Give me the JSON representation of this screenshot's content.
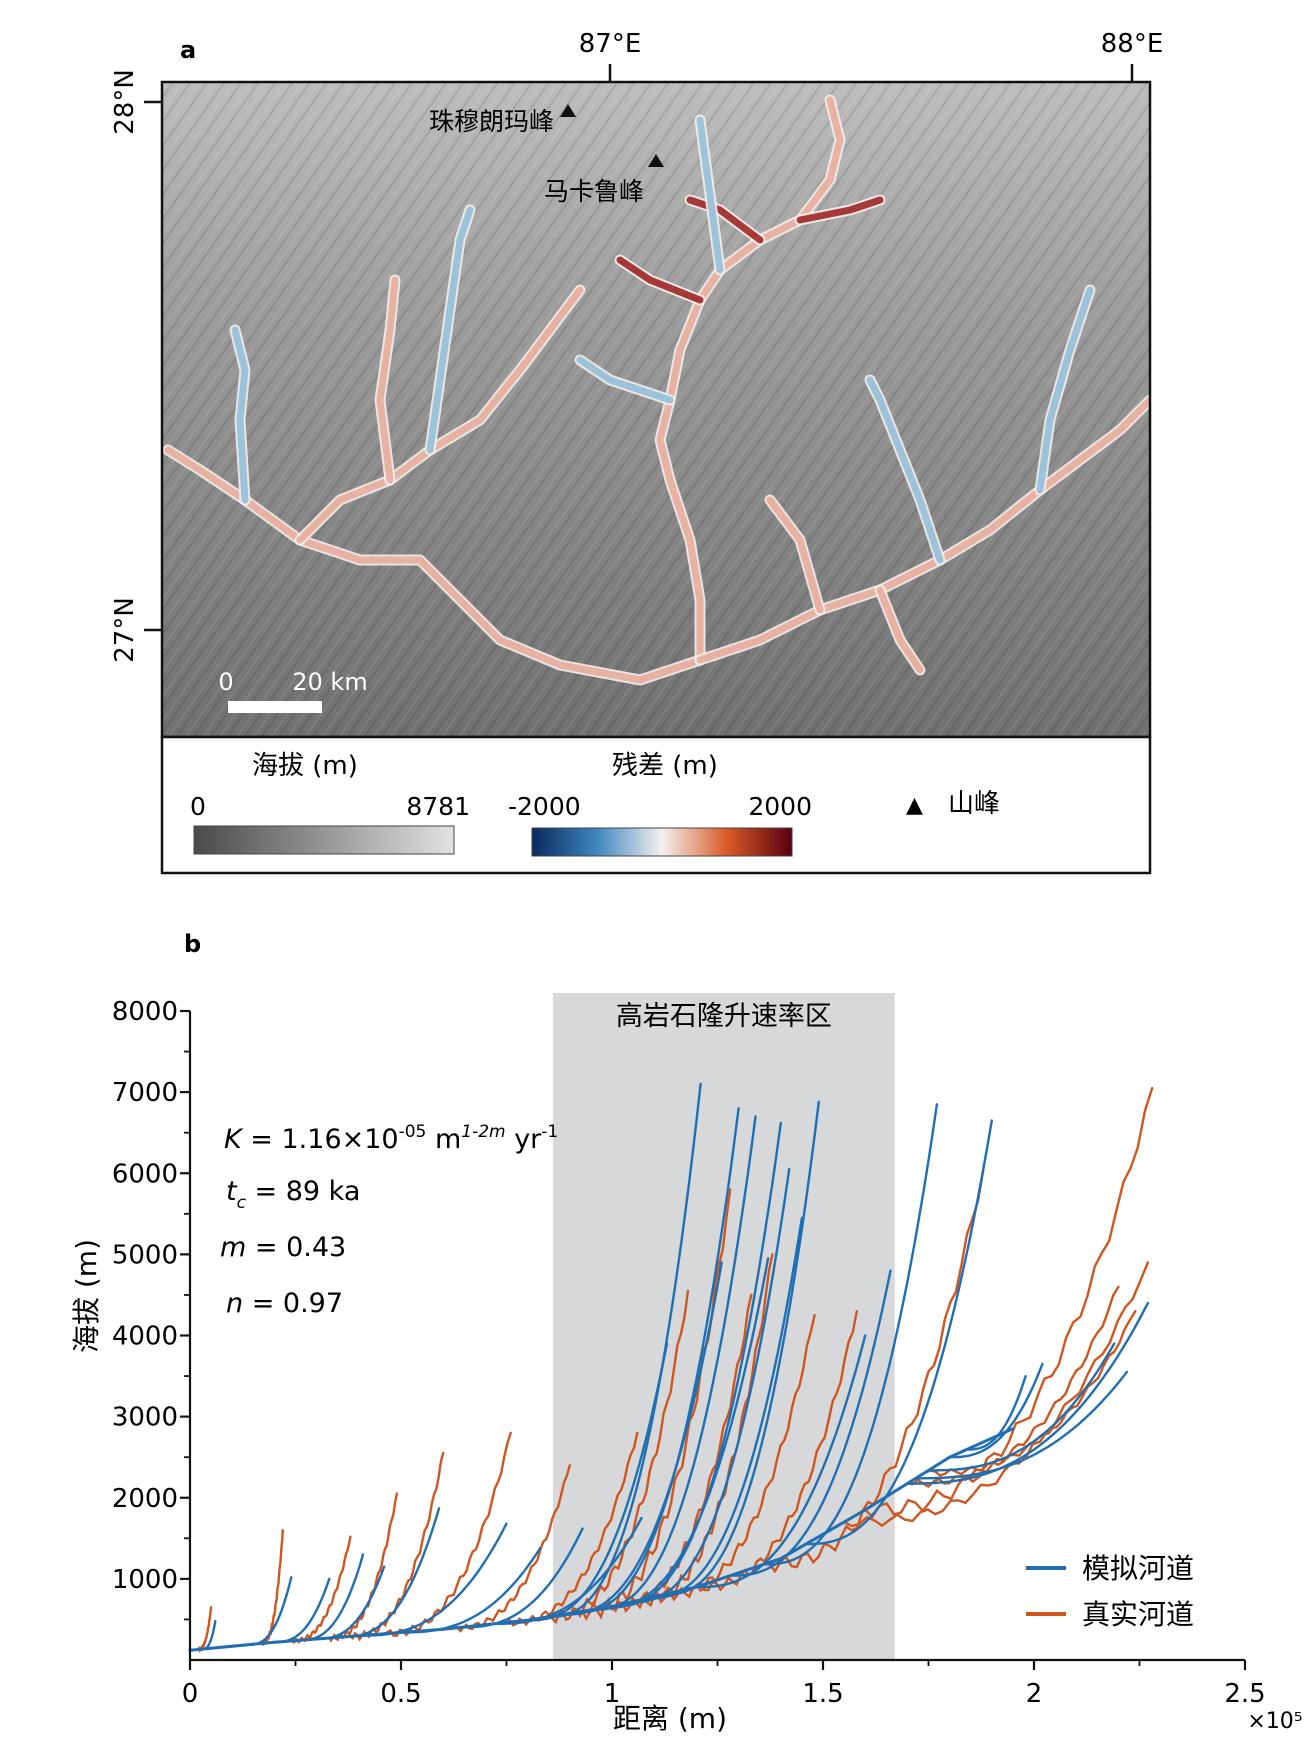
{
  "panel_a": {
    "label": "a",
    "lon_ticks": [
      "87°E",
      "88°E"
    ],
    "lat_ticks": [
      "28°N",
      "27°N"
    ],
    "peaks": [
      {
        "name": "珠穆朗玛峰"
      },
      {
        "name": "马卡鲁峰"
      }
    ],
    "scale_bar": {
      "start": "0",
      "end": "20 km"
    },
    "legend": {
      "elevation_title": "海拔 (m)",
      "elevation_min": "0",
      "elevation_max": "8781",
      "residual_title": "残差 (m)",
      "residual_min": "-2000",
      "residual_max": "2000",
      "peak_symbol": "▲",
      "peak_label": "山峰"
    },
    "colors": {
      "residual_low": "#0a2a5e",
      "residual_mid": "#f4f1ef",
      "residual_high": "#5a0010",
      "river_positive": "#e8a896",
      "river_negative": "#8fbcd8",
      "river_strong": "#9a1a1a"
    }
  },
  "chart_data": {
    "type": "line",
    "panel_label": "b",
    "xlabel": "距离 (m)",
    "ylabel": "海拔 (m)",
    "x_multiplier": "×10⁵",
    "xlim": [
      0,
      2.5
    ],
    "ylim": [
      0,
      8000
    ],
    "x_ticks": [
      "0",
      "0.5",
      "1",
      "1.5",
      "2",
      "2.5"
    ],
    "y_ticks": [
      "1000",
      "2000",
      "3000",
      "4000",
      "5000",
      "6000",
      "7000",
      "8000"
    ],
    "shaded_region": {
      "label": "高岩石隆升速率区",
      "x_start": 0.86,
      "x_end": 1.67
    },
    "params": [
      {
        "sym": "K",
        "rest": " = 1.16×10",
        "sup": "-05",
        "rest2": " m",
        "sup2": "1-2m",
        "rest3": " yr",
        "sup3": "-1"
      },
      {
        "sym": "t",
        "sub": "c",
        "rest": " = 89 ka"
      },
      {
        "sym": "m",
        "rest": " = 0.43"
      },
      {
        "sym": "n",
        "rest": " = 0.97"
      }
    ],
    "trunk": [
      [
        0.0,
        120
      ],
      [
        0.2,
        220
      ],
      [
        0.4,
        300
      ],
      [
        0.6,
        380
      ],
      [
        0.8,
        490
      ],
      [
        1.0,
        660
      ],
      [
        1.2,
        900
      ],
      [
        1.4,
        1250
      ],
      [
        1.6,
        1850
      ],
      [
        1.8,
        2500
      ],
      [
        1.95,
        2850
      ]
    ],
    "series": [
      {
        "name": "模拟河道",
        "color": "#1f6fb2"
      },
      {
        "name": "真实河道",
        "color": "#d0561f"
      }
    ],
    "simulated_tributaries": [
      {
        "x0": 0.03,
        "x1": 0.06,
        "ytop": 480
      },
      {
        "x0": 0.14,
        "x1": 0.24,
        "ytop": 1020
      },
      {
        "x0": 0.2,
        "x1": 0.33,
        "ytop": 1000
      },
      {
        "x0": 0.26,
        "x1": 0.41,
        "ytop": 1300
      },
      {
        "x0": 0.3,
        "x1": 0.46,
        "ytop": 1150
      },
      {
        "x0": 0.36,
        "x1": 0.59,
        "ytop": 1870
      },
      {
        "x0": 0.4,
        "x1": 0.75,
        "ytop": 1680
      },
      {
        "x0": 0.5,
        "x1": 0.83,
        "ytop": 1380
      },
      {
        "x0": 0.64,
        "x1": 0.93,
        "ytop": 1620
      },
      {
        "x0": 0.72,
        "x1": 1.07,
        "ytop": 1750
      },
      {
        "x0": 0.8,
        "x1": 1.13,
        "ytop": 3900
      },
      {
        "x0": 0.85,
        "x1": 1.21,
        "ytop": 7100
      },
      {
        "x0": 0.88,
        "x1": 1.26,
        "ytop": 4900
      },
      {
        "x0": 0.91,
        "x1": 1.3,
        "ytop": 6800
      },
      {
        "x0": 0.95,
        "x1": 1.34,
        "ytop": 6700
      },
      {
        "x0": 0.97,
        "x1": 1.37,
        "ytop": 4950
      },
      {
        "x0": 1.0,
        "x1": 1.4,
        "ytop": 6620
      },
      {
        "x0": 1.04,
        "x1": 1.42,
        "ytop": 6050
      },
      {
        "x0": 1.08,
        "x1": 1.45,
        "ytop": 5450
      },
      {
        "x0": 1.12,
        "x1": 1.49,
        "ytop": 6880
      },
      {
        "x0": 1.2,
        "x1": 1.6,
        "ytop": 4000
      },
      {
        "x0": 1.28,
        "x1": 1.66,
        "ytop": 4800
      },
      {
        "x0": 1.36,
        "x1": 1.77,
        "ytop": 6850
      },
      {
        "x0": 1.46,
        "x1": 1.9,
        "ytop": 6650
      },
      {
        "x0": 1.7,
        "x1": 2.27,
        "ytop": 4400
      },
      {
        "x0": 1.72,
        "x1": 2.22,
        "ytop": 3550
      },
      {
        "x0": 1.75,
        "x1": 2.19,
        "ytop": 3900
      },
      {
        "x0": 1.8,
        "x1": 2.02,
        "ytop": 3650
      },
      {
        "x0": 1.84,
        "x1": 1.98,
        "ytop": 3500
      }
    ],
    "real_tributaries": [
      {
        "x0": 0.02,
        "x1": 0.05,
        "ytop": 650
      },
      {
        "x0": 0.17,
        "x1": 0.22,
        "ytop": 1600
      },
      {
        "x0": 0.24,
        "x1": 0.38,
        "ytop": 1520
      },
      {
        "x0": 0.33,
        "x1": 0.49,
        "ytop": 2050
      },
      {
        "x0": 0.38,
        "x1": 0.6,
        "ytop": 2550
      },
      {
        "x0": 0.46,
        "x1": 0.76,
        "ytop": 2800
      },
      {
        "x0": 0.62,
        "x1": 0.9,
        "ytop": 2400
      },
      {
        "x0": 0.75,
        "x1": 1.06,
        "ytop": 2800
      },
      {
        "x0": 0.85,
        "x1": 1.18,
        "ytop": 4550
      },
      {
        "x0": 0.93,
        "x1": 1.28,
        "ytop": 5800
      },
      {
        "x0": 1.0,
        "x1": 1.33,
        "ytop": 4500
      },
      {
        "x0": 1.06,
        "x1": 1.38,
        "ytop": 5000
      },
      {
        "x0": 1.12,
        "x1": 1.48,
        "ytop": 4250
      },
      {
        "x0": 1.2,
        "x1": 1.58,
        "ytop": 4300
      },
      {
        "x0": 1.36,
        "x1": 1.88,
        "ytop": 6050
      },
      {
        "x0": 1.55,
        "x1": 2.27,
        "ytop": 4900
      },
      {
        "x0": 1.6,
        "x1": 2.28,
        "ytop": 7050
      },
      {
        "x0": 1.7,
        "x1": 2.2,
        "ytop": 4600
      },
      {
        "x0": 1.74,
        "x1": 2.24,
        "ytop": 4300
      }
    ]
  }
}
